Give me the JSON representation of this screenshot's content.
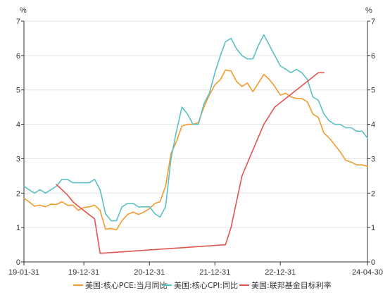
{
  "chart_data": {
    "type": "line",
    "left_unit": "%",
    "right_unit": "%",
    "ylim": [
      0,
      7
    ],
    "y_ticks": [
      "0",
      "1",
      "2",
      "3",
      "4",
      "5",
      "6",
      "7"
    ],
    "x_start": "2019-01-31",
    "x_end": "2024-04-30",
    "x_ticks": [
      {
        "label": "19-01-31",
        "date": "2019-01-31"
      },
      {
        "label": "19-12-31",
        "date": "2019-12-31"
      },
      {
        "label": "20-12-31",
        "date": "2020-12-31"
      },
      {
        "label": "21-12-31",
        "date": "2021-12-31"
      },
      {
        "label": "22-12-31",
        "date": "2022-12-31"
      },
      {
        "label": "24-04-30",
        "date": "2024-04-30"
      }
    ],
    "grid": "horizontal",
    "legend_position": "bottom",
    "series": [
      {
        "name": "美国:核心PCE:当月同比",
        "color": "#f59a2c",
        "points": [
          [
            "2019-01-31",
            1.85
          ],
          [
            "2019-02-28",
            1.75
          ],
          [
            "2019-03-31",
            1.62
          ],
          [
            "2019-04-30",
            1.65
          ],
          [
            "2019-05-31",
            1.6
          ],
          [
            "2019-06-30",
            1.68
          ],
          [
            "2019-07-31",
            1.67
          ],
          [
            "2019-08-31",
            1.75
          ],
          [
            "2019-09-30",
            1.65
          ],
          [
            "2019-10-31",
            1.65
          ],
          [
            "2019-11-30",
            1.5
          ],
          [
            "2019-12-31",
            1.58
          ],
          [
            "2020-01-31",
            1.6
          ],
          [
            "2020-02-29",
            1.65
          ],
          [
            "2020-03-31",
            1.5
          ],
          [
            "2020-04-30",
            0.95
          ],
          [
            "2020-05-31",
            0.97
          ],
          [
            "2020-06-30",
            0.93
          ],
          [
            "2020-07-31",
            1.2
          ],
          [
            "2020-08-31",
            1.38
          ],
          [
            "2020-09-30",
            1.45
          ],
          [
            "2020-10-31",
            1.38
          ],
          [
            "2020-11-30",
            1.45
          ],
          [
            "2020-12-31",
            1.55
          ],
          [
            "2021-01-31",
            1.7
          ],
          [
            "2021-02-28",
            1.75
          ],
          [
            "2021-03-31",
            2.2
          ],
          [
            "2021-04-30",
            3.15
          ],
          [
            "2021-05-31",
            3.5
          ],
          [
            "2021-06-30",
            3.95
          ],
          [
            "2021-07-31",
            4.0
          ],
          [
            "2021-08-31",
            4.0
          ],
          [
            "2021-09-30",
            4.05
          ],
          [
            "2021-10-31",
            4.5
          ],
          [
            "2021-11-30",
            4.85
          ],
          [
            "2021-12-31",
            5.15
          ],
          [
            "2022-01-31",
            5.3
          ],
          [
            "2022-02-28",
            5.58
          ],
          [
            "2022-03-31",
            5.55
          ],
          [
            "2022-04-30",
            5.25
          ],
          [
            "2022-05-31",
            5.1
          ],
          [
            "2022-06-30",
            5.2
          ],
          [
            "2022-07-31",
            4.95
          ],
          [
            "2022-08-31",
            5.2
          ],
          [
            "2022-09-30",
            5.45
          ],
          [
            "2022-10-31",
            5.3
          ],
          [
            "2022-11-30",
            5.1
          ],
          [
            "2022-12-31",
            4.85
          ],
          [
            "2023-01-31",
            4.9
          ],
          [
            "2023-02-28",
            4.8
          ],
          [
            "2023-03-31",
            4.75
          ],
          [
            "2023-04-30",
            4.75
          ],
          [
            "2023-05-31",
            4.65
          ],
          [
            "2023-06-30",
            4.3
          ],
          [
            "2023-07-31",
            4.2
          ],
          [
            "2023-08-31",
            3.75
          ],
          [
            "2023-09-30",
            3.6
          ],
          [
            "2023-10-31",
            3.4
          ],
          [
            "2023-11-30",
            3.2
          ],
          [
            "2023-12-31",
            2.95
          ],
          [
            "2024-01-31",
            2.9
          ],
          [
            "2024-02-29",
            2.82
          ],
          [
            "2024-03-31",
            2.82
          ],
          [
            "2024-04-30",
            2.78
          ]
        ]
      },
      {
        "name": "美国:核心CPI:同比",
        "color": "#5bc0c3",
        "points": [
          [
            "2019-01-31",
            2.2
          ],
          [
            "2019-02-28",
            2.1
          ],
          [
            "2019-03-31",
            2.0
          ],
          [
            "2019-04-30",
            2.1
          ],
          [
            "2019-05-31",
            2.0
          ],
          [
            "2019-06-30",
            2.1
          ],
          [
            "2019-07-31",
            2.2
          ],
          [
            "2019-08-31",
            2.4
          ],
          [
            "2019-09-30",
            2.4
          ],
          [
            "2019-10-31",
            2.3
          ],
          [
            "2019-11-30",
            2.3
          ],
          [
            "2019-12-31",
            2.3
          ],
          [
            "2020-01-31",
            2.3
          ],
          [
            "2020-02-29",
            2.4
          ],
          [
            "2020-03-31",
            2.1
          ],
          [
            "2020-04-30",
            1.4
          ],
          [
            "2020-05-31",
            1.2
          ],
          [
            "2020-06-30",
            1.2
          ],
          [
            "2020-07-31",
            1.6
          ],
          [
            "2020-08-31",
            1.7
          ],
          [
            "2020-09-30",
            1.7
          ],
          [
            "2020-10-31",
            1.6
          ],
          [
            "2020-11-30",
            1.6
          ],
          [
            "2020-12-31",
            1.6
          ],
          [
            "2021-01-31",
            1.4
          ],
          [
            "2021-02-28",
            1.3
          ],
          [
            "2021-03-31",
            1.6
          ],
          [
            "2021-04-30",
            3.0
          ],
          [
            "2021-05-31",
            3.8
          ],
          [
            "2021-06-30",
            4.5
          ],
          [
            "2021-07-31",
            4.3
          ],
          [
            "2021-08-31",
            4.0
          ],
          [
            "2021-09-30",
            4.0
          ],
          [
            "2021-10-31",
            4.6
          ],
          [
            "2021-11-30",
            4.9
          ],
          [
            "2021-12-31",
            5.5
          ],
          [
            "2022-01-31",
            6.0
          ],
          [
            "2022-02-28",
            6.4
          ],
          [
            "2022-03-31",
            6.5
          ],
          [
            "2022-04-30",
            6.2
          ],
          [
            "2022-05-31",
            6.0
          ],
          [
            "2022-06-30",
            5.9
          ],
          [
            "2022-07-31",
            5.9
          ],
          [
            "2022-08-31",
            6.3
          ],
          [
            "2022-09-30",
            6.6
          ],
          [
            "2022-10-31",
            6.3
          ],
          [
            "2022-11-30",
            6.0
          ],
          [
            "2022-12-31",
            5.7
          ],
          [
            "2023-01-31",
            5.6
          ],
          [
            "2023-02-28",
            5.5
          ],
          [
            "2023-03-31",
            5.6
          ],
          [
            "2023-04-30",
            5.5
          ],
          [
            "2023-05-31",
            5.3
          ],
          [
            "2023-06-30",
            4.8
          ],
          [
            "2023-07-31",
            4.7
          ],
          [
            "2023-08-31",
            4.3
          ],
          [
            "2023-09-30",
            4.1
          ],
          [
            "2023-10-31",
            4.0
          ],
          [
            "2023-11-30",
            4.0
          ],
          [
            "2023-12-31",
            3.9
          ],
          [
            "2024-01-31",
            3.9
          ],
          [
            "2024-02-29",
            3.8
          ],
          [
            "2024-03-31",
            3.8
          ],
          [
            "2024-04-30",
            3.6
          ]
        ]
      },
      {
        "name": "美国:联邦基金目标利率",
        "color": "#e0554f",
        "points": [
          [
            "2019-07-31",
            2.25
          ],
          [
            "2019-08-31",
            2.1
          ],
          [
            "2019-09-30",
            1.95
          ],
          [
            "2019-10-31",
            1.75
          ],
          [
            "2019-11-30",
            1.62
          ],
          [
            "2020-02-29",
            1.25
          ],
          [
            "2020-03-31",
            0.25
          ],
          [
            "2022-02-28",
            0.5
          ],
          [
            "2022-03-31",
            1.0
          ],
          [
            "2022-05-31",
            2.5
          ],
          [
            "2022-07-31",
            3.25
          ],
          [
            "2022-09-30",
            4.0
          ],
          [
            "2022-11-30",
            4.5
          ],
          [
            "2023-05-31",
            5.25
          ],
          [
            "2023-07-31",
            5.5
          ],
          [
            "2023-08-31",
            5.5
          ]
        ]
      }
    ]
  }
}
